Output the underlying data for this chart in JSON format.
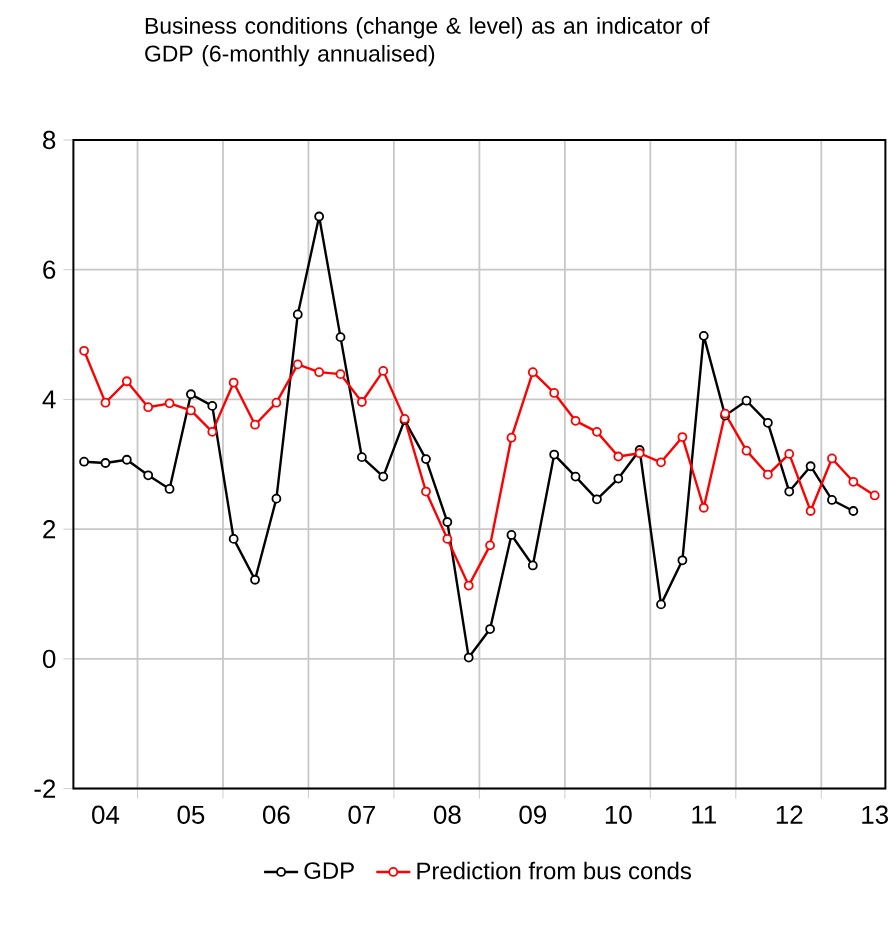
{
  "chart_data": {
    "type": "line",
    "title": "Business conditions (change & level) as an indicator of GDP (6-monthly annualised)",
    "categories": [
      null,
      "04",
      null,
      null,
      null,
      "05",
      null,
      null,
      null,
      "06",
      null,
      null,
      null,
      "07",
      null,
      null,
      null,
      "08",
      null,
      null,
      null,
      "09",
      null,
      null,
      null,
      "10",
      null,
      null,
      null,
      "11",
      null,
      null,
      null,
      "12",
      null,
      null,
      null,
      "13"
    ],
    "series": [
      {
        "name": "GDP",
        "color": "#000000",
        "values": [
          3.04,
          3.02,
          3.07,
          2.83,
          2.62,
          4.08,
          3.9,
          1.85,
          1.22,
          2.47,
          5.31,
          6.82,
          4.96,
          3.11,
          2.81,
          3.68,
          3.08,
          2.11,
          0.02,
          0.46,
          1.91,
          1.44,
          3.15,
          2.81,
          2.46,
          2.78,
          3.22,
          0.84,
          1.52,
          4.98,
          3.75,
          3.98,
          3.64,
          2.58,
          2.97,
          2.45,
          2.28,
          null
        ]
      },
      {
        "name": "Prediction from bus conds",
        "color": "#ff0000",
        "values": [
          4.75,
          3.95,
          4.28,
          3.88,
          3.94,
          3.83,
          3.5,
          4.26,
          3.61,
          3.95,
          4.54,
          4.42,
          4.39,
          3.96,
          4.44,
          3.7,
          2.58,
          1.85,
          1.13,
          1.75,
          3.41,
          4.42,
          4.1,
          3.67,
          3.5,
          3.12,
          3.17,
          3.03,
          3.42,
          2.33,
          3.78,
          3.21,
          2.84,
          3.16,
          2.28,
          3.09,
          2.73,
          2.52
        ]
      }
    ],
    "ylim": [
      -2,
      8
    ],
    "yticks": [
      -2,
      0,
      2,
      4,
      6,
      8
    ],
    "grid": true,
    "legend": "bottom",
    "marker": "circle",
    "line_style": "solid"
  }
}
